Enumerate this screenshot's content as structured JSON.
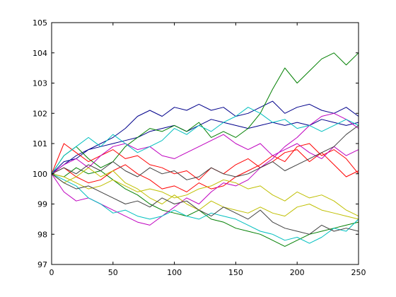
{
  "chart_data": {
    "type": "line",
    "title": "",
    "xlabel": "",
    "ylabel": "",
    "xlim": [
      0,
      250
    ],
    "ylim": [
      97,
      105
    ],
    "xticks": [
      0,
      50,
      100,
      150,
      200,
      250
    ],
    "yticks": [
      97,
      98,
      99,
      100,
      101,
      102,
      103,
      104,
      105
    ],
    "grid": false,
    "legend": "none",
    "series": [
      {
        "color": "#00008b",
        "x": [
          0,
          10,
          20,
          30,
          40,
          50,
          60,
          70,
          80,
          90,
          100,
          110,
          120,
          130,
          140,
          150,
          160,
          170,
          180,
          190,
          200,
          210,
          220,
          230,
          240,
          250
        ],
        "y": [
          100,
          100.3,
          100.6,
          100.8,
          101.0,
          101.2,
          101.5,
          101.9,
          102.1,
          101.9,
          102.2,
          102.1,
          102.3,
          102.1,
          102.2,
          101.9,
          102.0,
          102.2,
          102.4,
          102.0,
          102.2,
          102.3,
          102.1,
          102.0,
          102.2,
          101.9
        ]
      },
      {
        "color": "#00008b",
        "x": [
          0,
          10,
          20,
          30,
          40,
          50,
          60,
          70,
          80,
          90,
          100,
          110,
          120,
          130,
          140,
          150,
          160,
          170,
          180,
          190,
          200,
          210,
          220,
          230,
          240,
          250
        ],
        "y": [
          100,
          100.4,
          100.5,
          100.8,
          100.9,
          101.0,
          101.1,
          101.2,
          101.4,
          101.5,
          101.6,
          101.4,
          101.6,
          101.8,
          101.7,
          101.6,
          101.5,
          101.6,
          101.7,
          101.6,
          101.7,
          101.6,
          101.8,
          101.7,
          101.6,
          101.7
        ]
      },
      {
        "color": "#007f00",
        "x": [
          0,
          10,
          20,
          30,
          40,
          50,
          60,
          70,
          80,
          90,
          100,
          110,
          120,
          130,
          140,
          150,
          160,
          170,
          180,
          190,
          200,
          210,
          220,
          230,
          240,
          250
        ],
        "y": [
          100,
          100.6,
          100.9,
          100.5,
          100.2,
          100.4,
          100.9,
          101.2,
          101.5,
          101.4,
          101.6,
          101.4,
          101.7,
          101.2,
          101.4,
          101.2,
          101.5,
          102.0,
          102.8,
          103.5,
          103.0,
          103.4,
          103.8,
          104.0,
          103.6,
          104.0
        ]
      },
      {
        "color": "#007f00",
        "x": [
          0,
          10,
          20,
          30,
          40,
          50,
          60,
          70,
          80,
          90,
          100,
          110,
          120,
          130,
          140,
          150,
          160,
          170,
          180,
          190,
          200,
          210,
          220,
          230,
          240,
          250
        ],
        "y": [
          100,
          99.9,
          100.2,
          100.0,
          100.1,
          99.8,
          99.5,
          99.3,
          99.0,
          98.8,
          98.7,
          98.6,
          98.8,
          98.5,
          98.4,
          98.2,
          98.1,
          98.0,
          97.8,
          97.6,
          97.8,
          98.0,
          98.1,
          98.2,
          98.3,
          98.4
        ]
      },
      {
        "color": "#ff0000",
        "x": [
          0,
          10,
          20,
          30,
          40,
          50,
          60,
          70,
          80,
          90,
          100,
          110,
          120,
          130,
          140,
          150,
          160,
          170,
          180,
          190,
          200,
          210,
          220,
          230,
          240,
          250
        ],
        "y": [
          100,
          101.0,
          100.7,
          100.4,
          100.6,
          100.8,
          100.5,
          100.6,
          100.3,
          100.2,
          100.0,
          100.1,
          99.8,
          100.2,
          100.0,
          100.3,
          100.5,
          100.2,
          100.4,
          100.7,
          100.8,
          100.4,
          100.7,
          100.3,
          99.9,
          100.1
        ]
      },
      {
        "color": "#ff0000",
        "x": [
          0,
          10,
          20,
          30,
          40,
          50,
          60,
          70,
          80,
          90,
          100,
          110,
          120,
          130,
          140,
          150,
          160,
          170,
          180,
          190,
          200,
          210,
          220,
          230,
          240,
          250
        ],
        "y": [
          100,
          100.2,
          99.9,
          99.7,
          99.8,
          100.1,
          100.3,
          100.0,
          99.8,
          99.5,
          99.6,
          99.4,
          99.7,
          99.5,
          99.6,
          99.9,
          100.1,
          100.3,
          100.6,
          100.4,
          100.9,
          101.0,
          100.6,
          100.8,
          100.5,
          100.0
        ]
      },
      {
        "color": "#bf00bf",
        "x": [
          0,
          10,
          20,
          30,
          40,
          50,
          60,
          70,
          80,
          90,
          100,
          110,
          120,
          130,
          140,
          150,
          160,
          170,
          180,
          190,
          200,
          210,
          220,
          230,
          240,
          250
        ],
        "y": [
          100,
          99.4,
          99.1,
          99.2,
          99.0,
          98.8,
          98.6,
          98.4,
          98.3,
          98.6,
          98.9,
          99.2,
          99.0,
          99.4,
          99.7,
          99.6,
          99.8,
          100.2,
          100.5,
          100.9,
          101.2,
          101.6,
          101.9,
          102.0,
          101.8,
          101.5
        ]
      },
      {
        "color": "#bf00bf",
        "x": [
          0,
          10,
          20,
          30,
          40,
          50,
          60,
          70,
          80,
          90,
          100,
          110,
          120,
          130,
          140,
          150,
          160,
          170,
          180,
          190,
          200,
          210,
          220,
          230,
          240,
          250
        ],
        "y": [
          100,
          100.3,
          100.5,
          100.2,
          100.6,
          100.9,
          101.0,
          100.8,
          100.9,
          100.6,
          100.5,
          100.7,
          100.9,
          101.1,
          101.3,
          101.0,
          100.8,
          101.0,
          100.6,
          100.8,
          101.0,
          100.7,
          100.5,
          100.9,
          100.6,
          100.8
        ]
      },
      {
        "color": "#00bfbf",
        "x": [
          0,
          10,
          20,
          30,
          40,
          50,
          60,
          70,
          80,
          90,
          100,
          110,
          120,
          130,
          140,
          150,
          160,
          170,
          180,
          190,
          200,
          210,
          220,
          230,
          240,
          250
        ],
        "y": [
          100,
          100.6,
          100.9,
          101.2,
          100.9,
          101.3,
          101.0,
          100.7,
          100.9,
          101.1,
          101.5,
          101.3,
          101.6,
          101.4,
          101.7,
          101.9,
          102.2,
          102.0,
          101.7,
          101.8,
          101.5,
          101.6,
          101.4,
          101.6,
          101.8,
          101.6
        ]
      },
      {
        "color": "#00bfbf",
        "x": [
          0,
          10,
          20,
          30,
          40,
          50,
          60,
          70,
          80,
          90,
          100,
          110,
          120,
          130,
          140,
          150,
          160,
          170,
          180,
          190,
          200,
          210,
          220,
          230,
          240,
          250
        ],
        "y": [
          100,
          99.8,
          99.6,
          99.2,
          99.0,
          98.7,
          98.8,
          98.6,
          98.5,
          98.6,
          98.8,
          98.6,
          98.5,
          98.7,
          98.6,
          98.5,
          98.3,
          98.1,
          98.0,
          97.8,
          97.9,
          97.7,
          97.9,
          98.2,
          98.1,
          98.5
        ]
      },
      {
        "color": "#bfbf00",
        "x": [
          0,
          10,
          20,
          30,
          40,
          50,
          60,
          70,
          80,
          90,
          100,
          110,
          120,
          130,
          140,
          150,
          160,
          170,
          180,
          190,
          200,
          210,
          220,
          230,
          240,
          250
        ],
        "y": [
          100,
          99.7,
          99.9,
          100.2,
          99.9,
          100.1,
          99.7,
          99.5,
          99.2,
          99.0,
          99.3,
          99.0,
          98.8,
          99.1,
          98.9,
          98.8,
          98.7,
          98.9,
          98.7,
          98.6,
          98.9,
          99.0,
          98.8,
          98.7,
          98.6,
          98.5
        ]
      },
      {
        "color": "#bfbf00",
        "x": [
          0,
          10,
          20,
          30,
          40,
          50,
          60,
          70,
          80,
          90,
          100,
          110,
          120,
          130,
          140,
          150,
          160,
          170,
          180,
          190,
          200,
          210,
          220,
          230,
          240,
          250
        ],
        "y": [
          100,
          99.9,
          99.7,
          99.5,
          99.6,
          99.8,
          99.6,
          99.4,
          99.5,
          99.4,
          99.2,
          99.3,
          99.5,
          99.6,
          99.8,
          99.7,
          99.5,
          99.6,
          99.3,
          99.1,
          99.4,
          99.2,
          99.3,
          99.1,
          98.8,
          98.6
        ]
      },
      {
        "color": "#3f3f3f",
        "x": [
          0,
          10,
          20,
          30,
          40,
          50,
          60,
          70,
          80,
          90,
          100,
          110,
          120,
          130,
          140,
          150,
          160,
          170,
          180,
          190,
          200,
          210,
          220,
          230,
          240,
          250
        ],
        "y": [
          100,
          99.7,
          99.5,
          99.6,
          99.4,
          99.2,
          99.0,
          99.1,
          98.9,
          99.2,
          99.0,
          99.1,
          98.8,
          98.6,
          98.9,
          98.7,
          98.5,
          98.8,
          98.4,
          98.2,
          98.1,
          98.0,
          98.3,
          98.1,
          98.2,
          98.1
        ]
      },
      {
        "color": "#3f3f3f",
        "x": [
          0,
          10,
          20,
          30,
          40,
          50,
          60,
          70,
          80,
          90,
          100,
          110,
          120,
          130,
          140,
          150,
          160,
          170,
          180,
          190,
          200,
          210,
          220,
          230,
          240,
          250
        ],
        "y": [
          100,
          100.2,
          100.0,
          100.3,
          100.1,
          100.4,
          100.1,
          99.9,
          100.2,
          100.0,
          100.1,
          99.8,
          99.9,
          100.2,
          100.0,
          99.9,
          100.0,
          100.2,
          100.4,
          100.1,
          100.3,
          100.5,
          100.7,
          100.9,
          101.3,
          101.6
        ]
      }
    ]
  }
}
